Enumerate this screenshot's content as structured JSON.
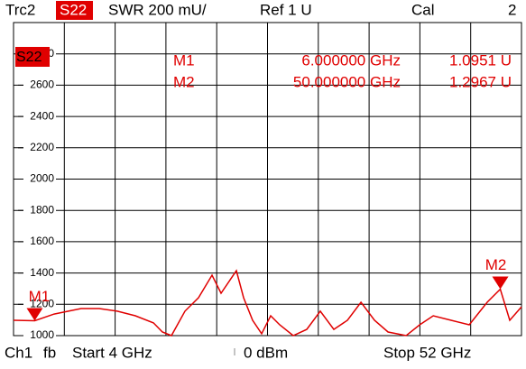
{
  "chart_data": {
    "type": "line",
    "header": [
      "Trc2",
      "S22",
      "SWR 200 mU/",
      "Ref 1 U",
      "Cal",
      "2"
    ],
    "footer": [
      "Ch1",
      "fb",
      "Start 4 GHz",
      "0 dBm",
      "Stop 52 GHz"
    ],
    "xlim": [
      4,
      52
    ],
    "xticks": [
      4,
      8.8,
      13.6,
      18.4,
      23.2,
      28,
      32.8,
      37.6,
      42.4,
      47.2,
      52
    ],
    "ylim": [
      1000,
      3000
    ],
    "yticks": [
      1000,
      1200,
      1400,
      1600,
      1800,
      2000,
      2200,
      2400,
      2600,
      2800,
      3000
    ],
    "ytick_labels_shown": [
      1000,
      1200,
      1400,
      1600,
      1800,
      2000,
      2200,
      2400,
      2600,
      2800
    ],
    "grid": true,
    "x": [
      4.0,
      6,
      7.84,
      10.39,
      12.1,
      13.8,
      15.51,
      17.22,
      18.07,
      18.92,
      20.2,
      21.48,
      22.76,
      23.61,
      25.06,
      25.74,
      26.59,
      27.45,
      28.3,
      29.15,
      30.43,
      31.71,
      32.99,
      34.27,
      35.55,
      36.83,
      38.11,
      39.39,
      41.1,
      42.38,
      43.66,
      45.35,
      47.06,
      48.76,
      50,
      50.89,
      52
    ],
    "series": [
      {
        "name": "S22",
        "color": "#e00000",
        "values": [
          1098,
          1095,
          1138,
          1173,
          1173,
          1156,
          1127,
          1081,
          1023,
          1000,
          1156,
          1242,
          1386,
          1271,
          1415,
          1242,
          1098,
          1012,
          1127,
          1069,
          1000,
          1040,
          1156,
          1040,
          1098,
          1213,
          1098,
          1023,
          1000,
          1069,
          1127,
          1098,
          1069,
          1213,
          1297,
          1098,
          1184
        ]
      }
    ],
    "markers": [
      {
        "name": "M1",
        "x": 6,
        "x_label": "6.000000 GHz",
        "value": 1095.1,
        "value_label": "1.0951 U"
      },
      {
        "name": "M2",
        "x": 50,
        "x_label": "50.000000 GHz",
        "value": 1296.7,
        "value_label": "1.2967 U"
      }
    ]
  }
}
